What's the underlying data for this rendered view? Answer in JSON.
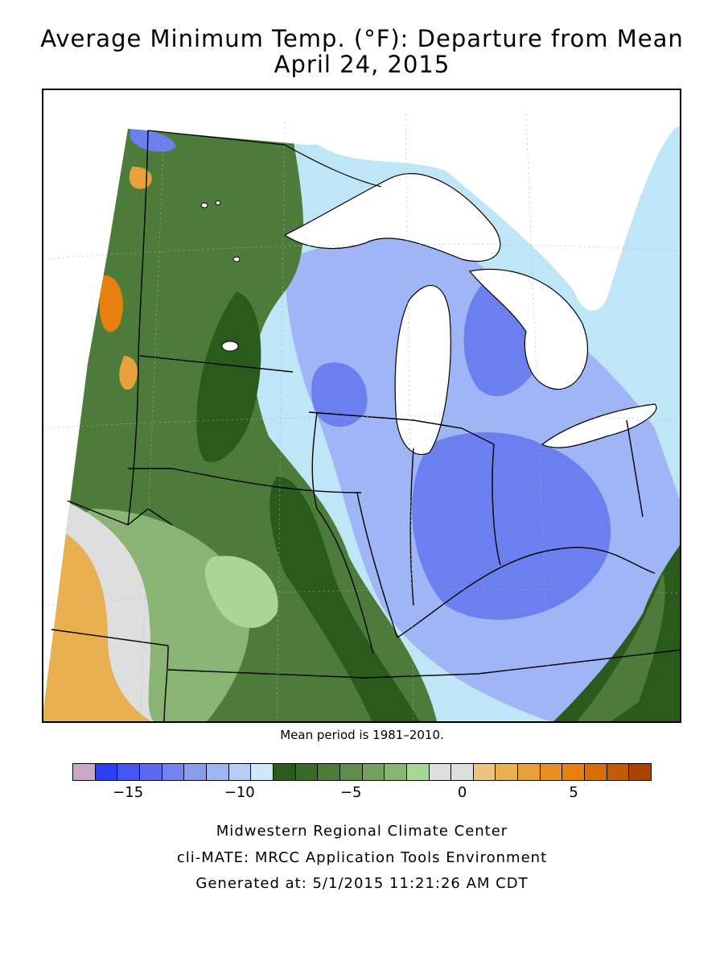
{
  "title": {
    "line1": "Average Minimum Temp. (°F): Departure from Mean",
    "line2": "April 24, 2015"
  },
  "map": {
    "description_region": "Midwest United States",
    "fill_colors": {
      "above_normal": "#e8a040",
      "near_normal": "#d9d9d9",
      "below_5": "#9fd08a",
      "below_7": "#4f8a3a",
      "below_9": "#2a5a1e",
      "below_10": "#bfe6f7",
      "below_12": "#9fb5f5",
      "below_15": "#6b80ee"
    }
  },
  "mean_period": "Mean period is 1981–2010.",
  "legend": {
    "colors": [
      "#c8a8c8",
      "#2b3ef5",
      "#4455f2",
      "#5c6af0",
      "#7284ef",
      "#8a9cf0",
      "#a0b4f4",
      "#b8ccf6",
      "#cce8f8",
      "#2b5a1d",
      "#3a6a2a",
      "#4d7c3a",
      "#5f8e4c",
      "#74a05f",
      "#8ab474",
      "#a8d694",
      "#dedede",
      "#dedede",
      "#ecc47c",
      "#e8b050",
      "#e8a03a",
      "#e89025",
      "#e88010",
      "#d86c05",
      "#c05a05",
      "#a84205"
    ],
    "ticks": [
      {
        "value": "−15",
        "pos": 2
      },
      {
        "value": "−10",
        "pos": 7
      },
      {
        "value": "−5",
        "pos": 12
      },
      {
        "value": "0",
        "pos": 17
      },
      {
        "value": "5",
        "pos": 22
      }
    ]
  },
  "footer": {
    "line1": "Midwestern Regional Climate Center",
    "line2": "cli-MATE: MRCC Application Tools Environment",
    "line3": "Generated at: 5/1/2015 11:21:26 AM CDT"
  }
}
